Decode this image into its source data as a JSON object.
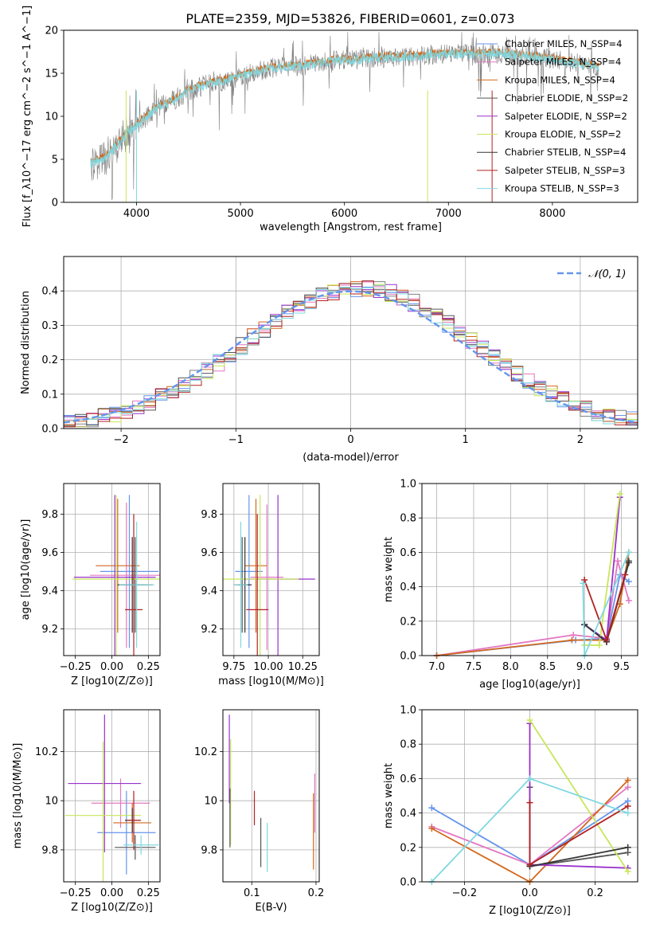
{
  "title": "PLATE=2359, MJD=53826, FIBERID=0601, z=0.073",
  "colors": {
    "blue": "#6495ED",
    "orange": "#D2691E",
    "darkorange": "#FF8C00",
    "gray": "#808080",
    "purple": "#9932CC",
    "yellowgreen": "#C8E65A",
    "darkgray": "#555555",
    "darkred": "#B22222",
    "cyan": "#7FD8E0",
    "pink": "#E377C2",
    "data": "#7f7f7f"
  },
  "chart_data": [
    {
      "id": "spectrum",
      "type": "line",
      "xlabel": "wavelength [Angstrom, rest frame]",
      "ylabel": "Flux [f_λ10^−17 erg cm^−2 s^−1 A^−1]",
      "xlim": [
        3300,
        8820
      ],
      "ylim": [
        0,
        20
      ],
      "xticks": [
        4000,
        5000,
        6000,
        7000,
        8000
      ],
      "yticks": [
        0,
        5,
        10,
        15,
        20
      ],
      "grid": false,
      "legend_position": "top-right",
      "legend": [
        {
          "label": "Chabrier MILES, N_SSP=4",
          "color": "#6495ED"
        },
        {
          "label": "Salpeter MILES, N_SSP=4",
          "color": "#E377C2"
        },
        {
          "label": "Kroupa MILES, N_SSP=4",
          "color": "#D2691E"
        },
        {
          "label": "Chabrier ELODIE, N_SSP=2",
          "color": "#555555"
        },
        {
          "label": "Salpeter ELODIE, N_SSP=2",
          "color": "#9932CC"
        },
        {
          "label": "Kroupa ELODIE, N_SSP=2",
          "color": "#C8E65A"
        },
        {
          "label": "Chabrier STELIB, N_SSP=4",
          "color": "#333333"
        },
        {
          "label": "Salpeter STELIB, N_SSP=3",
          "color": "#B22222"
        },
        {
          "label": "Kroupa STELIB, N_SSP=3",
          "color": "#7FD8E0"
        }
      ],
      "continuum": {
        "x": [
          3560,
          3700,
          3800,
          3900,
          4000,
          4100,
          4200,
          4300,
          4400,
          4500,
          4700,
          4900,
          5100,
          5300,
          5500,
          5700,
          5900,
          6100,
          6300,
          6500,
          6700,
          6900,
          7100,
          7300,
          7500,
          7700,
          7900,
          8100,
          8300,
          8450
        ],
        "y": [
          4.5,
          5.2,
          6.5,
          8.0,
          9.0,
          10.0,
          11.0,
          11.5,
          12.2,
          13.0,
          13.8,
          14.3,
          15.0,
          15.6,
          15.8,
          16.0,
          16.5,
          16.5,
          16.8,
          16.9,
          17.0,
          17.2,
          17.3,
          17.2,
          17.3,
          17.0,
          16.8,
          16.4,
          16.0,
          15.6
        ]
      },
      "vertical_lines": [
        3900,
        4000,
        6800,
        7420
      ]
    },
    {
      "id": "residuals",
      "type": "line",
      "xlabel": "(data-model)/error",
      "ylabel": "Normed distribution",
      "xlim": [
        -2.5,
        2.5
      ],
      "ylim": [
        0,
        0.5
      ],
      "xticks": [
        -2,
        -1,
        0,
        1,
        2
      ],
      "yticks": [
        0.0,
        0.1,
        0.2,
        0.3,
        0.4
      ],
      "grid": true,
      "legend_position": "top-right",
      "legend": [
        {
          "label": "𝒩(0, 1)",
          "color": "#6495ED",
          "style": "dashed"
        }
      ]
    },
    {
      "id": "age_vs_Z",
      "type": "scatter",
      "xlabel": "Z [log10(Z/Z⊙)]",
      "ylabel": "age  [log10(age/yr)]",
      "xlim": [
        -0.33,
        0.33
      ],
      "ylim": [
        9.06,
        9.96
      ],
      "xticks": [
        -0.25,
        0.0,
        0.25
      ],
      "xticklabels": [
        "−0.25",
        "0.00",
        "0.25"
      ],
      "yticks": [
        9.2,
        9.4,
        9.6,
        9.8
      ],
      "grid": true,
      "points": [
        {
          "x": 0.12,
          "y": 9.5,
          "xerr": 0.2,
          "yerr": 0.4,
          "color": "#6495ED"
        },
        {
          "x": 0.1,
          "y": 9.48,
          "xerr": 0.25,
          "yerr": 0.38,
          "color": "#E377C2"
        },
        {
          "x": 0.04,
          "y": 9.53,
          "xerr": 0.15,
          "yerr": 0.35,
          "color": "#D2691E"
        },
        {
          "x": 0.16,
          "y": 9.43,
          "xerr": 0.12,
          "yerr": 0.25,
          "color": "#555555"
        },
        {
          "x": 0.02,
          "y": 9.47,
          "xerr": 0.28,
          "yerr": 0.43,
          "color": "#9932CC"
        },
        {
          "x": 0.03,
          "y": 9.46,
          "xerr": 0.3,
          "yerr": 0.44,
          "color": "#C8E65A"
        },
        {
          "x": 0.14,
          "y": 9.43,
          "xerr": 0.1,
          "yerr": 0.25,
          "color": "#333333"
        },
        {
          "x": 0.15,
          "y": 9.3,
          "xerr": 0.06,
          "yerr": 0.5,
          "color": "#B22222"
        },
        {
          "x": 0.17,
          "y": 9.43,
          "xerr": 0.12,
          "yerr": 0.33,
          "color": "#7FD8E0"
        }
      ]
    },
    {
      "id": "age_vs_mass",
      "type": "scatter",
      "xlabel": "mass [log10(M/M⊙)]",
      "ylabel": "",
      "xlim": [
        9.67,
        10.37
      ],
      "ylim": [
        9.06,
        9.96
      ],
      "xticks": [
        9.75,
        10.0,
        10.25
      ],
      "xticklabels": [
        "9.75",
        "10.00",
        "10.25"
      ],
      "yticks": [
        9.2,
        9.4,
        9.6,
        9.8
      ],
      "grid": true,
      "points": [
        {
          "x": 9.86,
          "y": 9.5,
          "xerr": 0.1,
          "yerr": 0.4,
          "color": "#6495ED"
        },
        {
          "x": 9.99,
          "y": 9.47,
          "xerr": 0.12,
          "yerr": 0.38,
          "color": "#E377C2"
        },
        {
          "x": 9.91,
          "y": 9.53,
          "xerr": 0.08,
          "yerr": 0.35,
          "color": "#D2691E"
        },
        {
          "x": 9.81,
          "y": 9.43,
          "xerr": 0.06,
          "yerr": 0.25,
          "color": "#555555"
        },
        {
          "x": 10.07,
          "y": 9.46,
          "xerr": 0.27,
          "yerr": 0.44,
          "color": "#9932CC"
        },
        {
          "x": 9.94,
          "y": 9.46,
          "xerr": 0.28,
          "yerr": 0.44,
          "color": "#C8E65A"
        },
        {
          "x": 9.83,
          "y": 9.43,
          "xerr": 0.05,
          "yerr": 0.25,
          "color": "#333333"
        },
        {
          "x": 9.92,
          "y": 9.3,
          "xerr": 0.08,
          "yerr": 0.5,
          "color": "#B22222"
        },
        {
          "x": 9.8,
          "y": 9.43,
          "xerr": 0.05,
          "yerr": 0.33,
          "color": "#7FD8E0"
        }
      ]
    },
    {
      "id": "weight_vs_age",
      "type": "line",
      "xlabel": "age  [log10(age/yr)]",
      "ylabel": "mass weight",
      "xlim": [
        6.8,
        9.72
      ],
      "ylim": [
        0,
        1
      ],
      "xticks": [
        7.0,
        7.5,
        8.0,
        8.5,
        9.0,
        9.5
      ],
      "xticklabels": [
        "7.0",
        "7.5",
        "8.0",
        "8.5",
        "9.0",
        "9.5"
      ],
      "yticks": [
        0.0,
        0.2,
        0.4,
        0.6,
        0.8,
        1.0
      ],
      "grid": true,
      "series": [
        {
          "color": "#6495ED",
          "x": [
            7.0,
            8.88,
            9.3,
            9.48,
            9.6
          ],
          "y": [
            0.0,
            0.09,
            0.1,
            0.47,
            0.43
          ]
        },
        {
          "color": "#E377C2",
          "x": [
            7.0,
            8.85,
            9.3,
            9.45,
            9.6
          ],
          "y": [
            0.0,
            0.12,
            0.1,
            0.55,
            0.32
          ]
        },
        {
          "color": "#D2691E",
          "x": [
            7.0,
            8.83,
            9.3,
            9.48,
            9.6
          ],
          "y": [
            0.0,
            0.09,
            0.09,
            0.3,
            0.6
          ]
        },
        {
          "color": "#555555",
          "x": [
            9.0,
            9.3,
            9.6
          ],
          "y": [
            0.18,
            0.08,
            0.55
          ]
        },
        {
          "color": "#9932CC",
          "x": [
            9.0,
            9.3,
            9.48
          ],
          "y": [
            0.18,
            0.09,
            0.92
          ]
        },
        {
          "color": "#C8E65A",
          "x": [
            9.0,
            9.2,
            9.48
          ],
          "y": [
            0.06,
            0.06,
            0.94
          ]
        },
        {
          "color": "#333333",
          "x": [
            9.0,
            9.3,
            9.6
          ],
          "y": [
            0.18,
            0.08,
            0.54
          ]
        },
        {
          "color": "#B22222",
          "x": [
            9.0,
            9.3,
            9.55
          ],
          "y": [
            0.44,
            0.09,
            0.47
          ]
        },
        {
          "color": "#7FD8E0",
          "x": [
            8.98,
            9.0,
            9.6
          ],
          "y": [
            0.42,
            0.0,
            0.6
          ]
        }
      ]
    },
    {
      "id": "mass_vs_Z",
      "type": "scatter",
      "xlabel": "Z [log10(Z/Z⊙)]",
      "ylabel": "mass [log10(M/M⊙)]",
      "xlim": [
        -0.33,
        0.33
      ],
      "ylim": [
        9.67,
        10.37
      ],
      "xticks": [
        -0.25,
        0.0,
        0.25
      ],
      "xticklabels": [
        "−0.25",
        "0.00",
        "0.25"
      ],
      "yticks": [
        9.8,
        10.0,
        10.2
      ],
      "grid": true,
      "points": [
        {
          "x": 0.1,
          "y": 9.87,
          "xerr": 0.2,
          "yerr": 0.17,
          "color": "#6495ED"
        },
        {
          "x": 0.06,
          "y": 9.99,
          "xerr": 0.2,
          "yerr": 0.1,
          "color": "#E377C2"
        },
        {
          "x": 0.14,
          "y": 9.91,
          "xerr": 0.13,
          "yerr": 0.08,
          "color": "#D2691E"
        },
        {
          "x": 0.16,
          "y": 9.81,
          "xerr": 0.14,
          "yerr": 0.05,
          "color": "#555555"
        },
        {
          "x": -0.05,
          "y": 10.07,
          "xerr": 0.25,
          "yerr": 0.28,
          "color": "#9932CC"
        },
        {
          "x": -0.06,
          "y": 9.94,
          "xerr": 0.26,
          "yerr": 0.3,
          "color": "#C8E65A"
        },
        {
          "x": 0.14,
          "y": 9.92,
          "xerr": 0.05,
          "yerr": 0.05,
          "color": "#333333"
        },
        {
          "x": 0.15,
          "y": 9.92,
          "xerr": 0.05,
          "yerr": 0.12,
          "color": "#B22222"
        },
        {
          "x": 0.2,
          "y": 9.82,
          "xerr": 0.12,
          "yerr": 0.04,
          "color": "#7FD8E0"
        }
      ]
    },
    {
      "id": "mass_vs_EBV",
      "type": "scatter",
      "xlabel": "E(B-V)",
      "ylabel": "",
      "xlim": [
        0.055,
        0.205
      ],
      "ylim": [
        9.67,
        10.37
      ],
      "xticks": [
        0.1,
        0.2
      ],
      "xticklabels": [
        "0.1",
        "0.2"
      ],
      "yticks": [
        9.8,
        10.0,
        10.2
      ],
      "grid": true,
      "segments": [
        {
          "x": 0.065,
          "y0": 9.99,
          "y1": 10.35,
          "color": "#9932CC"
        },
        {
          "x": 0.067,
          "y0": 9.82,
          "y1": 10.25,
          "color": "#C8E65A"
        },
        {
          "x": 0.066,
          "y0": 9.81,
          "y1": 10.05,
          "color": "#555555"
        },
        {
          "x": 0.104,
          "y0": 9.9,
          "y1": 10.04,
          "color": "#B22222"
        },
        {
          "x": 0.114,
          "y0": 9.73,
          "y1": 9.93,
          "color": "#555555"
        },
        {
          "x": 0.124,
          "y0": 9.71,
          "y1": 9.91,
          "color": "#7FD8E0"
        },
        {
          "x": 0.196,
          "y0": 9.72,
          "y1": 10.03,
          "color": "#D2691E"
        },
        {
          "x": 0.198,
          "y0": 9.87,
          "y1": 10.11,
          "color": "#E377C2"
        }
      ]
    },
    {
      "id": "weight_vs_Z",
      "type": "line",
      "xlabel": "Z [log10(Z/Z⊙)]",
      "ylabel": "mass weight",
      "xlim": [
        -0.33,
        0.33
      ],
      "ylim": [
        0,
        1
      ],
      "xticks": [
        -0.2,
        0.0,
        0.2
      ],
      "xticklabels": [
        "−0.2",
        "0.0",
        "0.2"
      ],
      "yticks": [
        0.0,
        0.2,
        0.4,
        0.6,
        0.8,
        1.0
      ],
      "grid": true,
      "series": [
        {
          "color": "#6495ED",
          "x": [
            -0.3,
            0.0,
            0.3
          ],
          "y": [
            0.43,
            0.1,
            0.47
          ]
        },
        {
          "color": "#E377C2",
          "x": [
            -0.3,
            0.0,
            0.3
          ],
          "y": [
            0.32,
            0.1,
            0.55
          ]
        },
        {
          "color": "#D2691E",
          "x": [
            -0.3,
            0.0,
            0.3
          ],
          "y": [
            0.31,
            0.0,
            0.59
          ]
        },
        {
          "color": "#555555",
          "x": [
            0.0,
            0.0,
            0.3
          ],
          "y": [
            0.55,
            0.09,
            0.17
          ]
        },
        {
          "color": "#9932CC",
          "x": [
            0.0,
            0.0,
            0.3
          ],
          "y": [
            0.92,
            0.1,
            0.08
          ]
        },
        {
          "color": "#C8E65A",
          "x": [
            0.0,
            0.3
          ],
          "y": [
            0.94,
            0.06
          ]
        },
        {
          "color": "#333333",
          "x": [
            0.0,
            0.3
          ],
          "y": [
            0.09,
            0.2
          ]
        },
        {
          "color": "#B22222",
          "x": [
            0.0,
            0.0,
            0.3
          ],
          "y": [
            0.46,
            0.1,
            0.44
          ]
        },
        {
          "color": "#7FD8E0",
          "x": [
            -0.3,
            0.0,
            0.3
          ],
          "y": [
            0.0,
            0.6,
            0.4
          ]
        }
      ]
    }
  ]
}
